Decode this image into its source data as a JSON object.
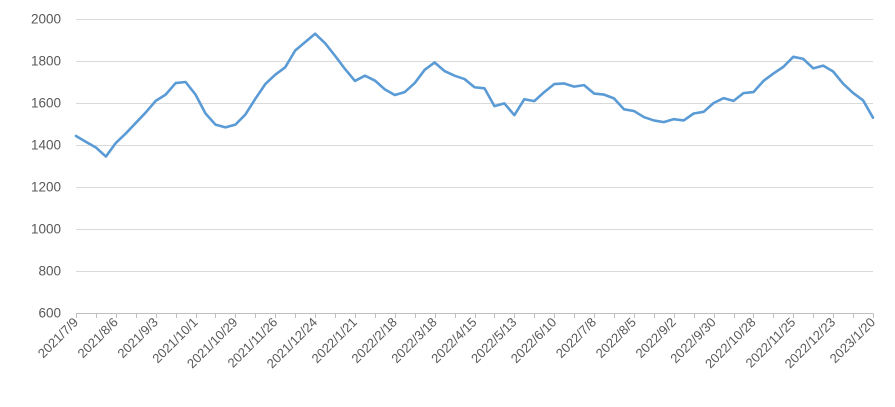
{
  "chart_data": {
    "type": "line",
    "title": "",
    "legend": "none",
    "grid": "horizontal",
    "x_labels": [
      "2021/7/9",
      "2021/8/6",
      "2021/9/3",
      "2021/10/1",
      "2021/10/29",
      "2021/11/26",
      "2021/12/24",
      "2022/1/21",
      "2022/2/18",
      "2022/3/18",
      "2022/4/15",
      "2022/5/13",
      "2022/6/10",
      "2022/7/8",
      "2022/8/5",
      "2022/9/2",
      "2022/9/30",
      "2022/10/28",
      "2022/11/25",
      "2022/12/23",
      "2023/1/20"
    ],
    "points_per_label": 4,
    "ticks_every_points": 2,
    "values": [
      1443,
      1415,
      1388,
      1345,
      1410,
      1455,
      1505,
      1555,
      1610,
      1640,
      1695,
      1700,
      1640,
      1550,
      1497,
      1484,
      1497,
      1545,
      1620,
      1690,
      1735,
      1770,
      1850,
      1890,
      1930,
      1885,
      1825,
      1762,
      1705,
      1730,
      1707,
      1665,
      1638,
      1652,
      1695,
      1758,
      1793,
      1752,
      1730,
      1714,
      1675,
      1670,
      1585,
      1598,
      1542,
      1618,
      1609,
      1652,
      1690,
      1693,
      1678,
      1685,
      1645,
      1640,
      1622,
      1570,
      1562,
      1533,
      1517,
      1509,
      1523,
      1517,
      1550,
      1558,
      1600,
      1623,
      1610,
      1647,
      1652,
      1705,
      1740,
      1772,
      1820,
      1810,
      1765,
      1778,
      1750,
      1692,
      1648,
      1613,
      1530
    ],
    "ylim": [
      600,
      2000
    ],
    "yticks": [
      "600",
      "800",
      "1000",
      "1200",
      "1400",
      "1600",
      "1800",
      "2000"
    ],
    "xlabel": "",
    "ylabel": "",
    "line_color": "#5B9BD5",
    "gridline_color": "#D9D9D9",
    "axis_color": "#BFBFBF",
    "label_color": "#595959",
    "background_color": "#FFFFFF"
  }
}
